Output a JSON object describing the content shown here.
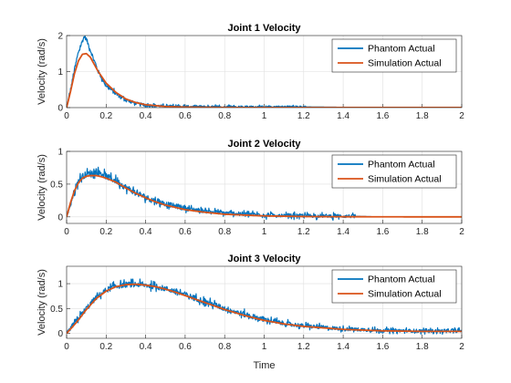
{
  "figure": {
    "xlabel": "Time"
  },
  "colors": {
    "phantom": "#0072BD",
    "simulation": "#D95319",
    "grid": "#dfdfdf",
    "axis": "#262626"
  },
  "legend": {
    "position": "top-right"
  },
  "chart_data": [
    {
      "type": "line",
      "title": "Joint 1 Velocity",
      "xlabel": "",
      "ylabel": "Velocity (rad/s)",
      "xlim": [
        0,
        2
      ],
      "ylim": [
        0,
        2
      ],
      "xticks": [
        "0",
        "0.2",
        "0.4",
        "0.6",
        "0.8",
        "1",
        "1.2",
        "1.4",
        "1.6",
        "1.8",
        "2"
      ],
      "yticks": [
        "0",
        "1",
        "2"
      ],
      "grid": true,
      "series": [
        {
          "name": "Phantom Actual",
          "color": "#0072BD",
          "noise": 0.07,
          "noise_end": 1.22,
          "x": [
            0,
            0.02,
            0.04,
            0.06,
            0.08,
            0.09,
            0.1,
            0.12,
            0.14,
            0.16,
            0.2,
            0.25,
            0.3,
            0.35,
            0.4,
            0.5,
            0.6,
            0.8,
            1.0,
            1.2,
            1.4,
            1.6,
            1.8,
            2.0
          ],
          "y": [
            0,
            0.5,
            1.05,
            1.55,
            1.85,
            1.98,
            1.9,
            1.6,
            1.3,
            1.0,
            0.62,
            0.38,
            0.22,
            0.12,
            0.07,
            0.04,
            0.03,
            0.02,
            0.02,
            0.02,
            0.01,
            0.01,
            0.01,
            0.01
          ]
        },
        {
          "name": "Simulation Actual",
          "color": "#D95319",
          "x": [
            0,
            0.02,
            0.04,
            0.06,
            0.08,
            0.1,
            0.12,
            0.14,
            0.16,
            0.2,
            0.25,
            0.3,
            0.35,
            0.4,
            0.5,
            0.6,
            0.8,
            1.0,
            1.2,
            1.4,
            1.6,
            1.8,
            2.0
          ],
          "y": [
            0,
            0.45,
            0.95,
            1.3,
            1.48,
            1.5,
            1.4,
            1.2,
            1.0,
            0.68,
            0.42,
            0.24,
            0.14,
            0.08,
            0.03,
            0.015,
            0.005,
            0.002,
            0.001,
            0.001,
            0.001,
            0.001,
            0.001
          ]
        }
      ]
    },
    {
      "type": "line",
      "title": "Joint 2 Velocity",
      "xlabel": "",
      "ylabel": "Velocity (rad/s)",
      "xlim": [
        0,
        2
      ],
      "ylim": [
        -0.1,
        1
      ],
      "xticks": [
        "0",
        "0.2",
        "0.4",
        "0.6",
        "0.8",
        "1",
        "1.2",
        "1.4",
        "1.6",
        "1.8",
        "2"
      ],
      "yticks": [
        "0",
        "0.5",
        "1"
      ],
      "yticks_values": [
        0,
        0.5,
        1
      ],
      "grid": true,
      "series": [
        {
          "name": "Phantom Actual",
          "color": "#0072BD",
          "noise": 0.06,
          "noise_end": 1.46,
          "x": [
            0,
            0.02,
            0.04,
            0.06,
            0.08,
            0.1,
            0.12,
            0.15,
            0.18,
            0.2,
            0.25,
            0.3,
            0.35,
            0.4,
            0.45,
            0.5,
            0.6,
            0.7,
            0.8,
            1.0,
            1.2,
            1.45,
            1.6,
            1.8,
            2.0
          ],
          "y": [
            0,
            0.2,
            0.4,
            0.55,
            0.62,
            0.65,
            0.67,
            0.68,
            0.66,
            0.62,
            0.55,
            0.45,
            0.37,
            0.3,
            0.24,
            0.2,
            0.13,
            0.09,
            0.06,
            0.03,
            0.02,
            0.01,
            0.0,
            0.0,
            0.0
          ]
        },
        {
          "name": "Simulation Actual",
          "color": "#D95319",
          "x": [
            0,
            0.02,
            0.04,
            0.06,
            0.08,
            0.1,
            0.12,
            0.15,
            0.18,
            0.2,
            0.25,
            0.3,
            0.35,
            0.4,
            0.45,
            0.5,
            0.6,
            0.7,
            0.8,
            1.0,
            1.2,
            1.4,
            1.6,
            1.8,
            2.0
          ],
          "y": [
            0,
            0.22,
            0.4,
            0.52,
            0.59,
            0.62,
            0.63,
            0.63,
            0.61,
            0.59,
            0.53,
            0.44,
            0.36,
            0.29,
            0.23,
            0.18,
            0.11,
            0.07,
            0.04,
            0.015,
            0.005,
            0.002,
            0.001,
            0.0,
            0.0
          ]
        }
      ]
    },
    {
      "type": "line",
      "title": "Joint 3 Velocity",
      "xlabel": "Time",
      "ylabel": "Velocity (rad/s)",
      "xlim": [
        0,
        2
      ],
      "ylim": [
        -0.1,
        1.35
      ],
      "xticks": [
        "0",
        "0.2",
        "0.4",
        "0.6",
        "0.8",
        "1",
        "1.2",
        "1.4",
        "1.6",
        "1.8",
        "2"
      ],
      "yticks": [
        "0",
        "0.5",
        "1"
      ],
      "yticks_values": [
        0,
        0.5,
        1
      ],
      "grid": true,
      "series": [
        {
          "name": "Phantom Actual",
          "color": "#0072BD",
          "noise": 0.07,
          "noise_end": 2.0,
          "x": [
            0,
            0.05,
            0.1,
            0.15,
            0.2,
            0.25,
            0.3,
            0.35,
            0.4,
            0.45,
            0.5,
            0.55,
            0.6,
            0.7,
            0.8,
            0.9,
            1.0,
            1.1,
            1.2,
            1.4,
            1.6,
            1.8,
            2.0
          ],
          "y": [
            0,
            0.25,
            0.5,
            0.72,
            0.87,
            0.95,
            0.98,
            0.99,
            0.97,
            0.94,
            0.9,
            0.85,
            0.78,
            0.64,
            0.5,
            0.38,
            0.28,
            0.2,
            0.15,
            0.09,
            0.06,
            0.05,
            0.05
          ]
        },
        {
          "name": "Simulation Actual",
          "color": "#D95319",
          "x": [
            0,
            0.05,
            0.1,
            0.15,
            0.2,
            0.25,
            0.3,
            0.35,
            0.4,
            0.45,
            0.5,
            0.55,
            0.6,
            0.7,
            0.8,
            0.9,
            1.0,
            1.1,
            1.2,
            1.4,
            1.6,
            1.8,
            2.0
          ],
          "y": [
            0,
            0.22,
            0.48,
            0.7,
            0.85,
            0.94,
            0.98,
            0.99,
            0.97,
            0.94,
            0.89,
            0.83,
            0.76,
            0.62,
            0.48,
            0.36,
            0.26,
            0.19,
            0.14,
            0.08,
            0.05,
            0.04,
            0.04
          ]
        }
      ]
    }
  ]
}
